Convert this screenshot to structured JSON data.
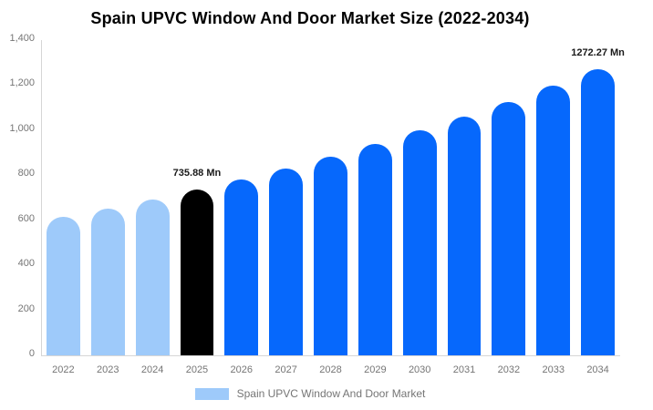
{
  "title": "Spain UPVC Window And Door Market Size (2022-2034)",
  "chart_data": {
    "type": "bar",
    "title": "Spain UPVC Window And Door Market Size (2022-2034)",
    "xlabel": "",
    "ylabel": "",
    "unit": "Mn",
    "categories": [
      "2022",
      "2023",
      "2024",
      "2025",
      "2026",
      "2027",
      "2028",
      "2029",
      "2030",
      "2031",
      "2032",
      "2033",
      "2034"
    ],
    "values": [
      613.2,
      651.7,
      692.5,
      735.88,
      782.0,
      831.1,
      883.2,
      938.6,
      997.4,
      1059.9,
      1126.4,
      1197.0,
      1272.27
    ],
    "bar_colors": [
      "#9ecafa",
      "#9ecafa",
      "#9ecafa",
      "#000000",
      "#0668fc",
      "#0668fc",
      "#0668fc",
      "#0668fc",
      "#0668fc",
      "#0668fc",
      "#0668fc",
      "#0668fc",
      "#0668fc"
    ],
    "annotations": [
      {
        "category": "2025",
        "text": "735.88 Mn"
      },
      {
        "category": "2034",
        "text": "1272.27 Mn"
      }
    ],
    "ylim": [
      0,
      1400
    ],
    "ytick_labels": [
      "0",
      "200",
      "400",
      "600",
      "800",
      "1,000",
      "1,200",
      "1,400"
    ],
    "grid": "off",
    "legend_position": "bottom"
  },
  "legend": {
    "label": "Spain UPVC Window And Door Market",
    "swatch_color": "#9ecafa"
  },
  "colors": {
    "historical_bar": "#9ecafa",
    "base_year_bar": "#000000",
    "forecast_bar": "#0668fc",
    "axis_line": "#d6d6d6",
    "tick_text": "#757575",
    "annotation_text": "#1a1a1a"
  }
}
